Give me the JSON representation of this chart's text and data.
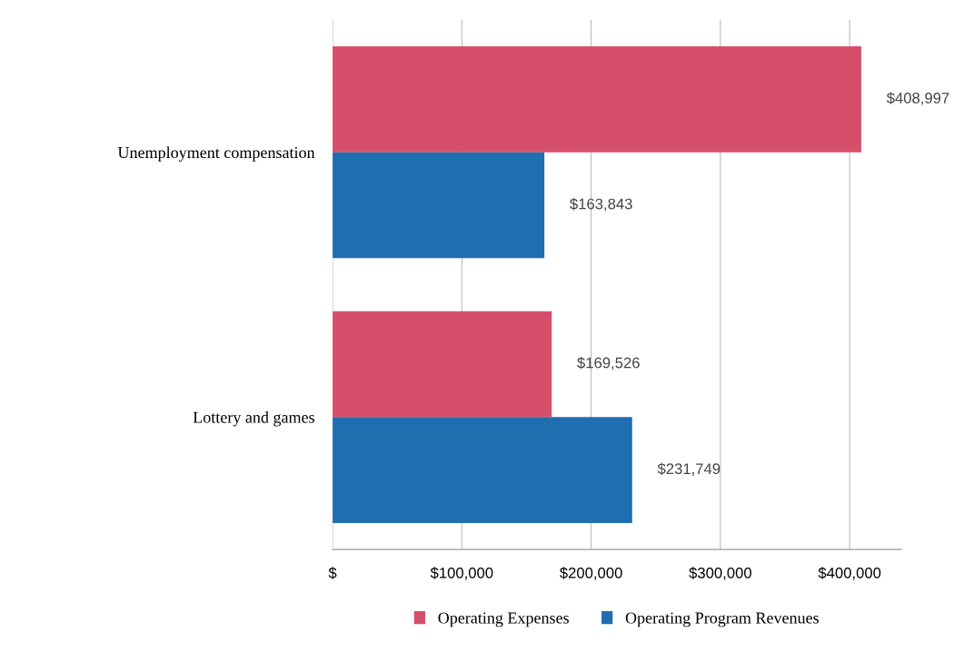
{
  "chart_data": {
    "type": "bar",
    "orientation": "horizontal",
    "categories": [
      "Unemployment compensation",
      "Lottery and games"
    ],
    "series": [
      {
        "name": "Operating Expenses",
        "color": "#d64f6a",
        "values": [
          408997,
          169526
        ],
        "value_labels": [
          "$408,997",
          "$169,526"
        ]
      },
      {
        "name": "Operating Program Revenues",
        "color": "#1f6eb0",
        "values": [
          163843,
          231749
        ],
        "value_labels": [
          "$163,843",
          "$231,749"
        ]
      }
    ],
    "xlim": [
      0,
      440000
    ],
    "xticks": [
      {
        "value": 0,
        "label": "$"
      },
      {
        "value": 100000,
        "label": "$100,000"
      },
      {
        "value": 200000,
        "label": "$200,000"
      },
      {
        "value": 300000,
        "label": "$300,000"
      },
      {
        "value": 400000,
        "label": "$400,000"
      }
    ],
    "grid": "x",
    "legend": "bottom"
  }
}
